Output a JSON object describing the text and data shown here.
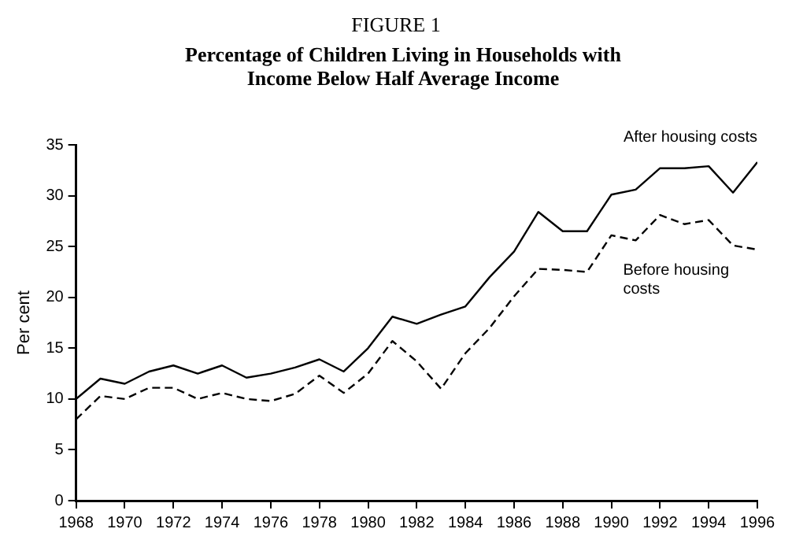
{
  "chart_data": {
    "type": "line",
    "title": "FIGURE 1",
    "subtitle": "Percentage of Children Living in Households with Income Below Half Average Income",
    "ylabel": "Per cent",
    "x": [
      1968,
      1969,
      1970,
      1971,
      1972,
      1973,
      1974,
      1975,
      1976,
      1977,
      1978,
      1979,
      1980,
      1981,
      1982,
      1983,
      1984,
      1985,
      1986,
      1987,
      1988,
      1989,
      1990,
      1991,
      1992,
      1993,
      1994,
      1995,
      1996
    ],
    "series": [
      {
        "name": "After housing costs",
        "color": "#000000",
        "line_style": "solid",
        "values": [
          10,
          12,
          11.5,
          12.7,
          13.3,
          12.5,
          13.3,
          12.1,
          12.5,
          13.1,
          13.9,
          12.7,
          15,
          18.1,
          17.4,
          18.3,
          19.1,
          22,
          24.5,
          28.4,
          26.5,
          26.5,
          30.1,
          30.6,
          32.7,
          32.7,
          32.9,
          30.3,
          33.3
        ]
      },
      {
        "name": "Before housing costs",
        "color": "#000000",
        "line_style": "dashed",
        "values": [
          8,
          10.3,
          10,
          11.1,
          11.1,
          10,
          10.6,
          10,
          9.8,
          10.5,
          12.3,
          10.6,
          12.5,
          15.7,
          13.7,
          11,
          14.5,
          17,
          20.1,
          22.8,
          22.7,
          22.5,
          26.1,
          25.6,
          28.1,
          27.2,
          27.6,
          25.1,
          24.7
        ]
      }
    ],
    "xlim": [
      1968,
      1996
    ],
    "xticks": [
      1968,
      1970,
      1972,
      1974,
      1976,
      1978,
      1980,
      1982,
      1984,
      1986,
      1988,
      1990,
      1992,
      1994,
      1996
    ],
    "ylim": [
      0,
      35
    ],
    "yticks": [
      0,
      5,
      10,
      15,
      20,
      25,
      30,
      35
    ],
    "grid": false,
    "legend": false,
    "marker": "none"
  }
}
